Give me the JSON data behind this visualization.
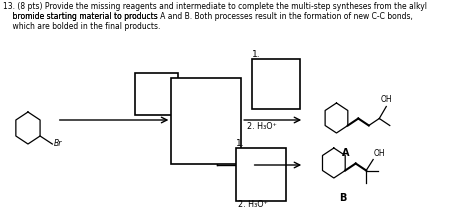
{
  "bg_color": "#ffffff",
  "title_line1": "13. (8 pts) Provide the missing reagents and intermediate to complete the multi-step syntheses from the alkyl",
  "title_line2": "    bromide starting material to products ​A and B. Both processes result in the formation of new C-C bonds,",
  "title_line3": "    which are bolded in the final products.",
  "label_1a": "1.",
  "label_2a": "2. H₃O⁺",
  "label_1b": "1.",
  "label_2b": "2. H₃O⁺",
  "label_A": "A",
  "label_B": "B",
  "label_Br": "Br"
}
